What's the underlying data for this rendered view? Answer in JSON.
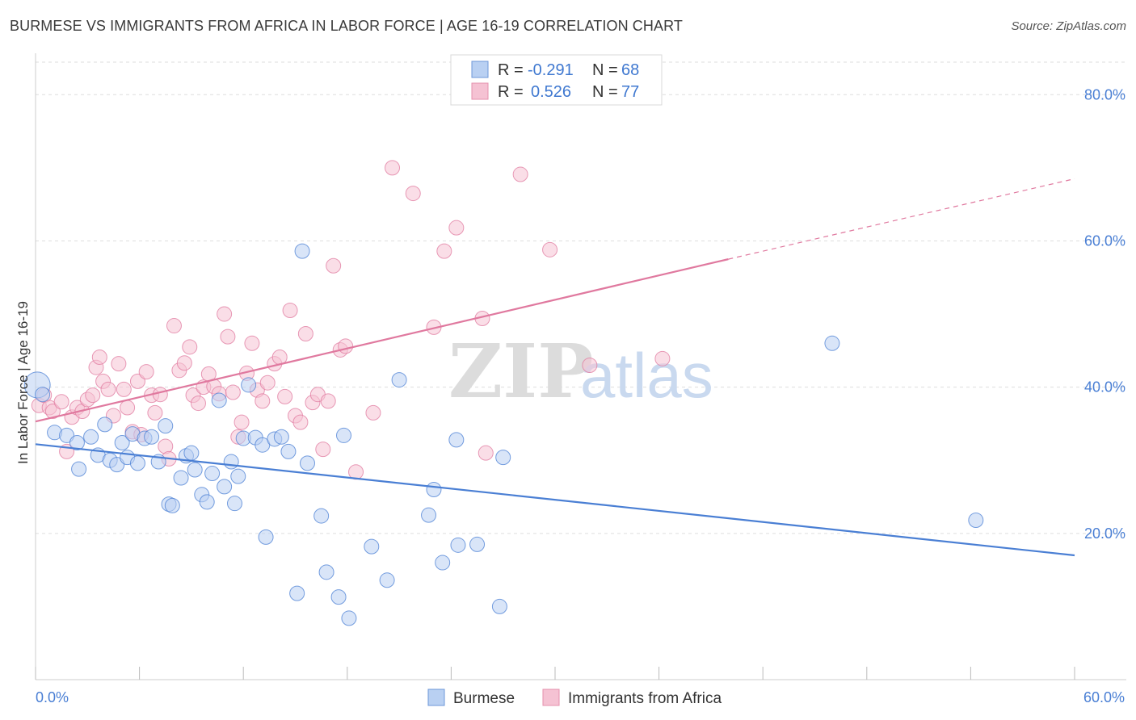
{
  "title": "BURMESE VS IMMIGRANTS FROM AFRICA IN LABOR FORCE | AGE 16-19 CORRELATION CHART",
  "source": "Source: ZipAtlas.com",
  "watermark": {
    "zip": "ZIP",
    "atlas": "atlas"
  },
  "chart_data": {
    "type": "scatter",
    "title": "BURMESE VS IMMIGRANTS FROM AFRICA IN LABOR FORCE | AGE 16-19 CORRELATION CHART",
    "ylabel": "In Labor Force | Age 16-19",
    "xlabel": "",
    "xlim": [
      0,
      60
    ],
    "ylim": [
      0,
      85
    ],
    "x_tick_labels": [
      "0.0%",
      "60.0%"
    ],
    "y_ticks": [
      20,
      40,
      60,
      80
    ],
    "y_tick_labels": [
      "20.0%",
      "40.0%",
      "60.0%",
      "80.0%"
    ],
    "grid": true,
    "legend_top": [
      {
        "r_label": "R =",
        "r_value": "-0.291",
        "n_label": "N =",
        "n_value": "68"
      },
      {
        "r_label": "R =",
        "r_value": "0.526",
        "n_label": "N =",
        "n_value": "77"
      }
    ],
    "series": [
      {
        "name": "Burmese",
        "color": "#4a7fd4",
        "fill": "#b9d0f2",
        "trend": {
          "x0": 0,
          "y0": 32.2,
          "x1": 60,
          "y1": 17.0
        },
        "points": [
          [
            0.1,
            40.3
          ],
          [
            0.4,
            39.0
          ],
          [
            1.1,
            33.8
          ],
          [
            1.8,
            33.4
          ],
          [
            2.4,
            32.4
          ],
          [
            2.5,
            28.8
          ],
          [
            3.2,
            33.2
          ],
          [
            3.6,
            30.7
          ],
          [
            4.0,
            34.9
          ],
          [
            4.3,
            30.0
          ],
          [
            4.7,
            29.4
          ],
          [
            5.0,
            32.4
          ],
          [
            5.3,
            30.4
          ],
          [
            5.6,
            33.6
          ],
          [
            5.9,
            29.6
          ],
          [
            6.3,
            33.0
          ],
          [
            6.7,
            33.2
          ],
          [
            7.1,
            29.8
          ],
          [
            7.5,
            34.7
          ],
          [
            7.7,
            24.0
          ],
          [
            7.9,
            23.8
          ],
          [
            8.4,
            27.6
          ],
          [
            8.7,
            30.6
          ],
          [
            9.0,
            31.0
          ],
          [
            9.2,
            28.7
          ],
          [
            9.6,
            25.3
          ],
          [
            9.9,
            24.3
          ],
          [
            10.2,
            28.2
          ],
          [
            10.6,
            38.2
          ],
          [
            10.9,
            26.4
          ],
          [
            11.3,
            29.8
          ],
          [
            11.5,
            24.1
          ],
          [
            11.7,
            27.8
          ],
          [
            12.0,
            33.0
          ],
          [
            12.3,
            40.3
          ],
          [
            12.7,
            33.1
          ],
          [
            13.1,
            32.1
          ],
          [
            13.3,
            19.5
          ],
          [
            13.8,
            32.9
          ],
          [
            14.2,
            33.2
          ],
          [
            14.6,
            31.2
          ],
          [
            15.1,
            11.8
          ],
          [
            15.4,
            58.6
          ],
          [
            15.7,
            29.6
          ],
          [
            16.5,
            22.4
          ],
          [
            16.8,
            14.7
          ],
          [
            17.5,
            11.3
          ],
          [
            17.8,
            33.4
          ],
          [
            18.1,
            8.4
          ],
          [
            19.4,
            18.2
          ],
          [
            20.3,
            13.6
          ],
          [
            21.0,
            41.0
          ],
          [
            22.7,
            22.5
          ],
          [
            23.0,
            26.0
          ],
          [
            23.5,
            16.0
          ],
          [
            24.3,
            32.8
          ],
          [
            24.4,
            18.4
          ],
          [
            25.5,
            18.5
          ],
          [
            26.8,
            10.0
          ],
          [
            27.0,
            30.4
          ],
          [
            46.0,
            46.0
          ],
          [
            54.3,
            21.8
          ]
        ]
      },
      {
        "name": "Immigrants from Africa",
        "color": "#e0799f",
        "fill": "#f5c2d3",
        "trend": {
          "x0": 0,
          "y0": 35.3,
          "x1": 40,
          "y1": 57.5,
          "dash_x1": 60,
          "dash_y1": 68.5
        },
        "points": [
          [
            0.2,
            37.5
          ],
          [
            0.5,
            38.9
          ],
          [
            0.8,
            37.2
          ],
          [
            1.0,
            36.7
          ],
          [
            1.5,
            38.0
          ],
          [
            1.8,
            31.2
          ],
          [
            2.1,
            35.9
          ],
          [
            2.4,
            37.2
          ],
          [
            2.7,
            36.7
          ],
          [
            3.0,
            38.3
          ],
          [
            3.3,
            38.9
          ],
          [
            3.5,
            42.7
          ],
          [
            3.7,
            44.1
          ],
          [
            3.9,
            40.8
          ],
          [
            4.2,
            39.7
          ],
          [
            4.5,
            36.1
          ],
          [
            4.8,
            43.2
          ],
          [
            5.1,
            39.7
          ],
          [
            5.3,
            37.2
          ],
          [
            5.6,
            33.9
          ],
          [
            5.9,
            40.8
          ],
          [
            6.1,
            33.5
          ],
          [
            6.4,
            42.1
          ],
          [
            6.7,
            38.9
          ],
          [
            6.9,
            36.5
          ],
          [
            7.2,
            39.0
          ],
          [
            7.5,
            31.9
          ],
          [
            7.7,
            30.2
          ],
          [
            8.0,
            48.4
          ],
          [
            8.3,
            42.3
          ],
          [
            8.6,
            43.3
          ],
          [
            8.9,
            45.5
          ],
          [
            9.1,
            38.9
          ],
          [
            9.4,
            37.8
          ],
          [
            9.7,
            40.0
          ],
          [
            10.0,
            41.8
          ],
          [
            10.3,
            40.1
          ],
          [
            10.6,
            39.1
          ],
          [
            10.9,
            50.0
          ],
          [
            11.1,
            46.9
          ],
          [
            11.4,
            39.3
          ],
          [
            11.7,
            33.2
          ],
          [
            11.9,
            35.2
          ],
          [
            12.2,
            41.9
          ],
          [
            12.5,
            46.0
          ],
          [
            12.8,
            39.6
          ],
          [
            13.1,
            38.1
          ],
          [
            13.4,
            40.6
          ],
          [
            13.8,
            43.2
          ],
          [
            14.1,
            44.1
          ],
          [
            14.4,
            38.7
          ],
          [
            14.7,
            50.5
          ],
          [
            15.0,
            36.1
          ],
          [
            15.3,
            35.2
          ],
          [
            15.6,
            47.3
          ],
          [
            16.0,
            37.9
          ],
          [
            16.3,
            39.0
          ],
          [
            16.6,
            31.5
          ],
          [
            16.9,
            38.1
          ],
          [
            17.2,
            56.6
          ],
          [
            17.6,
            45.1
          ],
          [
            17.9,
            45.6
          ],
          [
            18.5,
            28.4
          ],
          [
            19.5,
            36.5
          ],
          [
            20.6,
            70.0
          ],
          [
            21.8,
            66.5
          ],
          [
            23.0,
            48.2
          ],
          [
            23.6,
            58.6
          ],
          [
            24.3,
            61.8
          ],
          [
            25.8,
            49.4
          ],
          [
            26.0,
            31.0
          ],
          [
            28.0,
            69.1
          ],
          [
            29.7,
            58.8
          ],
          [
            32.0,
            43.0
          ],
          [
            36.2,
            43.9
          ]
        ]
      }
    ]
  },
  "bottom_legend": [
    {
      "label": "Burmese"
    },
    {
      "label": "Immigrants from Africa"
    }
  ]
}
